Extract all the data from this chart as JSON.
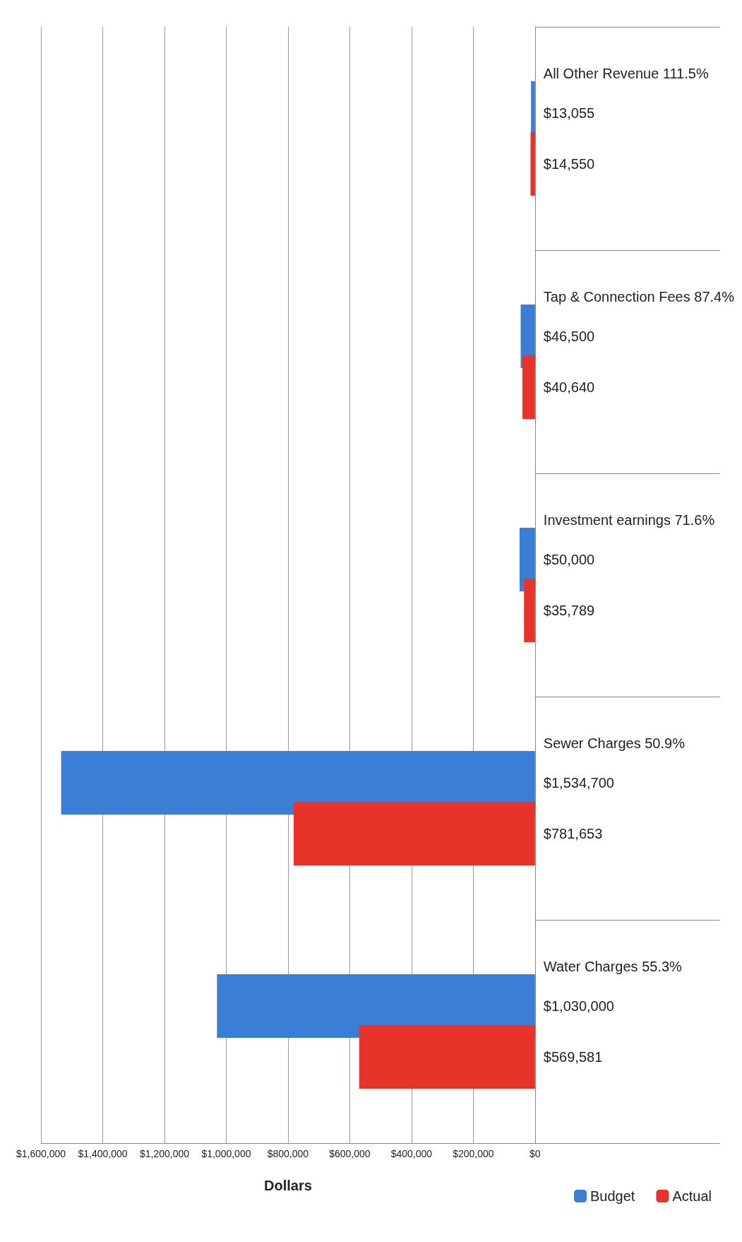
{
  "chart_data": {
    "type": "bar",
    "orientation": "horizontal",
    "xlabel": "Dollars",
    "categories": [
      "All Other Revenue 111.5%",
      "Tap & Connection Fees 87.4%",
      "Investment earnings 71.6%",
      "Sewer Charges 50.9%",
      "Water Charges 55.3%"
    ],
    "series": [
      {
        "name": "Budget",
        "color": "#3a7fd5",
        "values": [
          13055,
          46500,
          50000,
          1534700,
          1030000
        ],
        "value_labels": [
          "$13,055",
          "$46,500",
          "$50,000",
          "$1,534,700",
          "$1,030,000"
        ]
      },
      {
        "name": "Actual",
        "color": "#e8332a",
        "values": [
          14550,
          40640,
          35789,
          781653,
          569581
        ],
        "value_labels": [
          "$14,550",
          "$40,640",
          "$35,789",
          "$781,653",
          "$569,581"
        ]
      }
    ],
    "xlim": [
      1600000,
      0
    ],
    "xticks": [
      {
        "value": 0,
        "label": "$0"
      },
      {
        "value": 200000,
        "label": "$200,000"
      },
      {
        "value": 400000,
        "label": "$400,000"
      },
      {
        "value": 600000,
        "label": "$600,000"
      },
      {
        "value": 800000,
        "label": "$800,000"
      },
      {
        "value": 1000000,
        "label": "$1,000,000"
      },
      {
        "value": 1200000,
        "label": "$1,200,000"
      },
      {
        "value": 1400000,
        "label": "$1,400,000"
      },
      {
        "value": 1600000,
        "label": "$1,600,000"
      }
    ],
    "grid": "x",
    "legend": "bottom right"
  }
}
